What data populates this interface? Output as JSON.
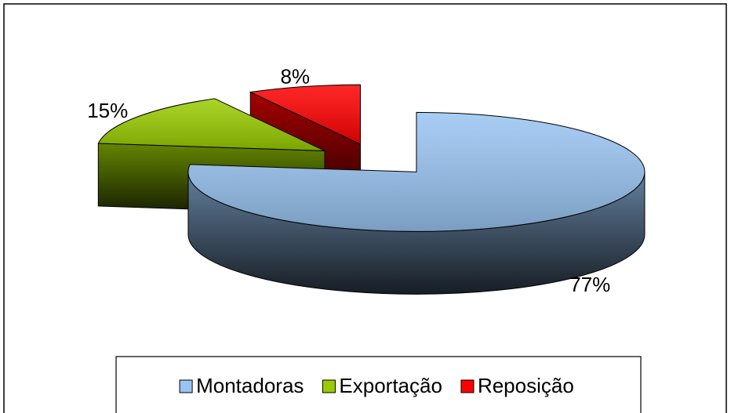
{
  "chart_data": {
    "type": "pie",
    "categories": [
      "Montadoras",
      "Exportação",
      "Reposição"
    ],
    "values": [
      77,
      15,
      8
    ],
    "value_labels": [
      "77%",
      "15%",
      "8%"
    ],
    "colors": [
      "#99c4f2",
      "#99cc00",
      "#ff0000"
    ],
    "legend": "bottom"
  }
}
